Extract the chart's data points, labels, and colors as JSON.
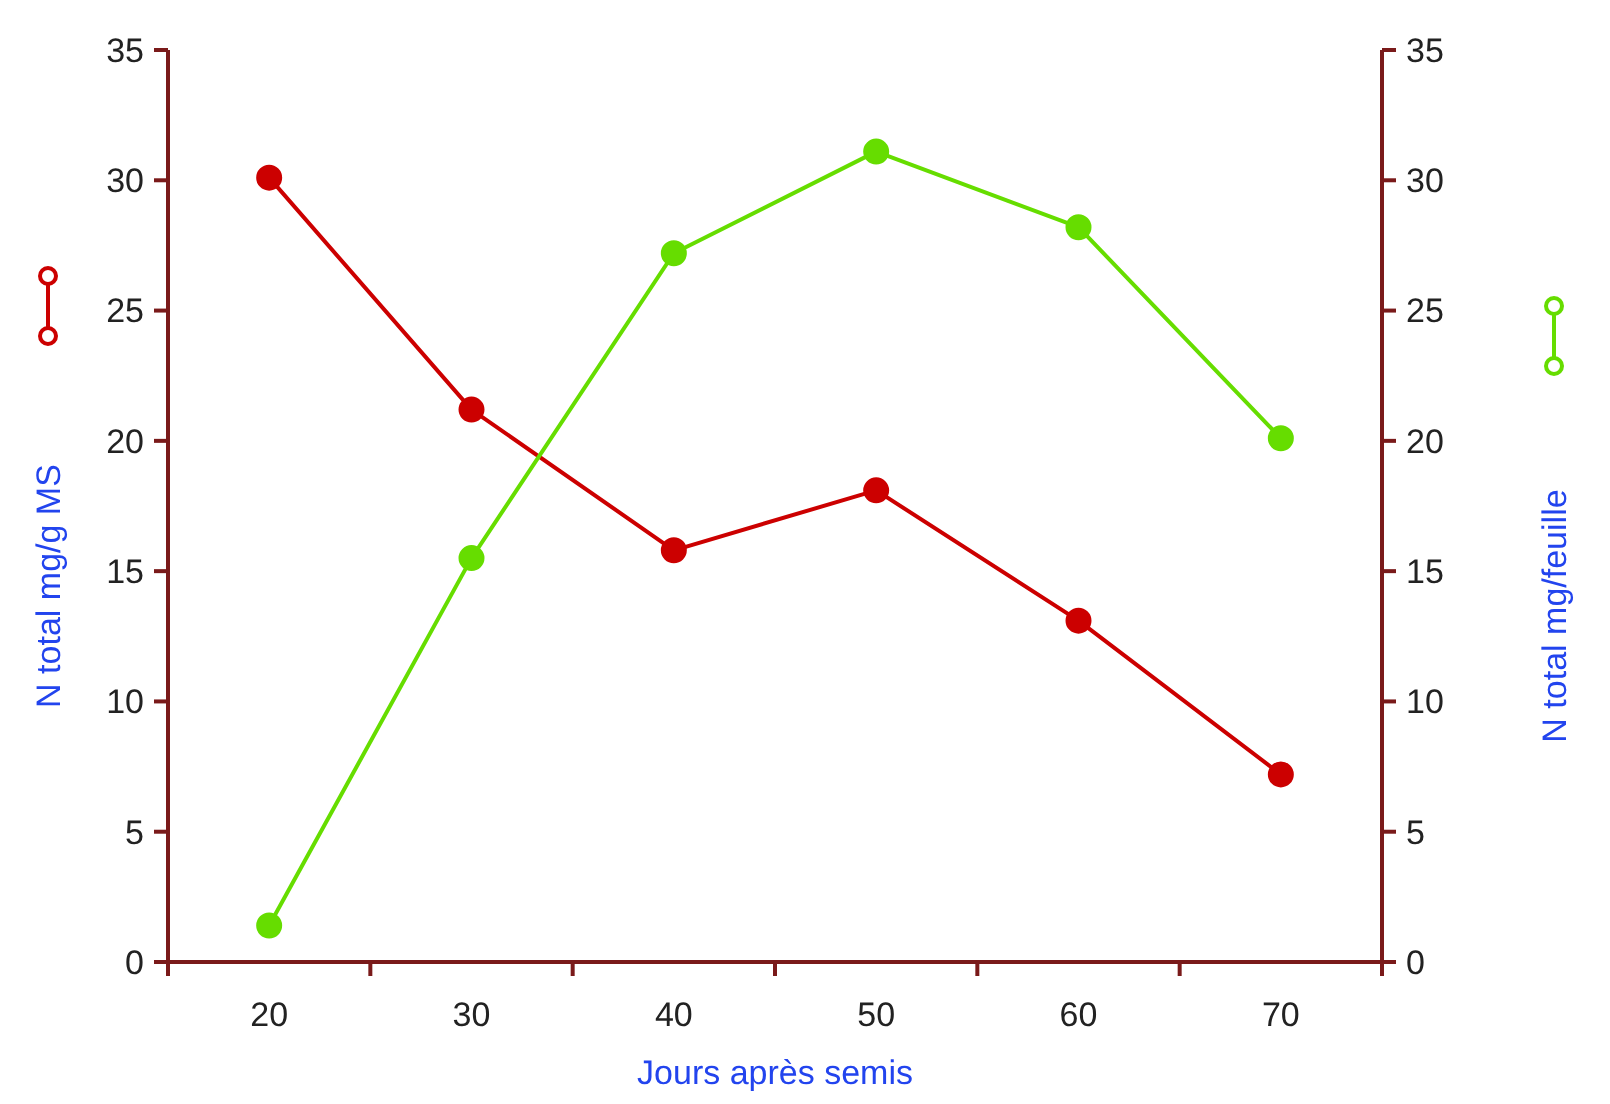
{
  "chart_data": {
    "type": "line",
    "xlabel": "Jours après semis",
    "ylabel": "N total mg/g MS",
    "y2label": "N total mg/feuille",
    "categories": [
      "20",
      "30",
      "40",
      "50",
      "60",
      "70"
    ],
    "series": [
      {
        "color": "#cc0000",
        "values": [
          30.1,
          21.2,
          15.8,
          18.1,
          13.1,
          7.2
        ]
      },
      {
        "color": "#66dd00",
        "axis": "y2",
        "values": [
          1.4,
          15.5,
          27.2,
          31.1,
          28.2,
          20.1
        ]
      }
    ],
    "ylim": [
      0,
      35
    ],
    "yticks": [
      0,
      5,
      10,
      15,
      20,
      25,
      30,
      35
    ],
    "y2lim": [
      0,
      35
    ],
    "y2ticks": [
      0,
      5,
      10,
      15,
      20,
      25,
      30,
      35
    ],
    "grid": false,
    "marker": "circle",
    "line_style": "solid"
  }
}
